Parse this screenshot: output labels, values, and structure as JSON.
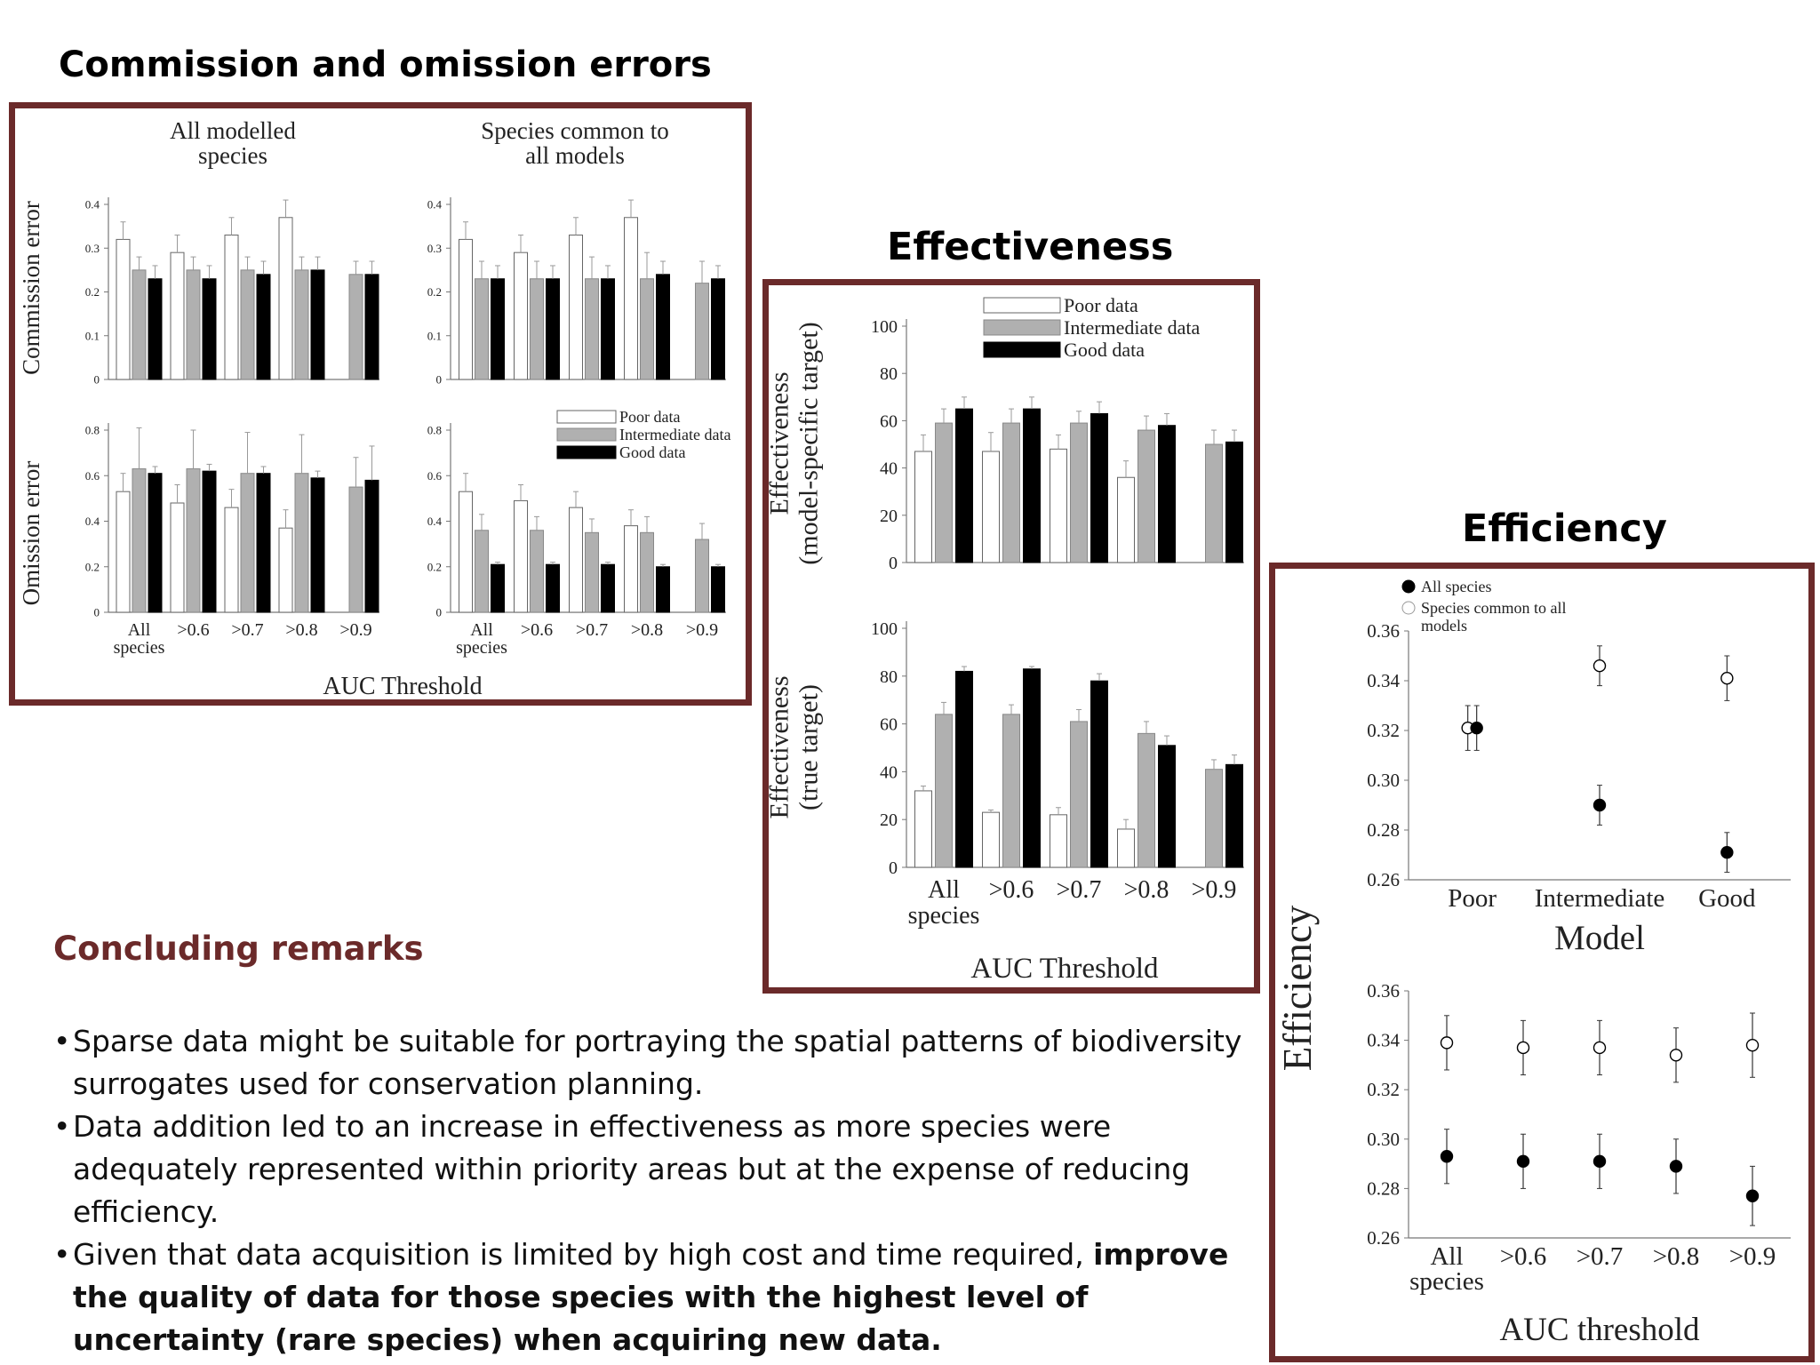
{
  "headings": {
    "commission_omission": "Commission and omission errors",
    "effectiveness": "Effectiveness",
    "efficiency": "Efficiency",
    "concluding": "Concluding remarks"
  },
  "colors": {
    "frame": "#6b2a2a",
    "poor": "#ffffff",
    "intermediate": "#b0b0b0",
    "good": "#000000",
    "remarks": "#6b2a2a"
  },
  "remarks": [
    {
      "text": "Sparse data might be suitable for portraying the spatial patterns of biodiversity surrogates used for conservation planning.",
      "bold": ""
    },
    {
      "text": "Data addition led to an increase in effectiveness as more species were adequately represented within priority areas but at the expense of reducing efficiency.",
      "bold": ""
    },
    {
      "text": "Given that data acquisition is limited by high cost and time required, ",
      "bold": "improve the quality of data for those species with the highest level of uncertainty (rare species) when acquiring new data."
    }
  ],
  "chart_data": [
    {
      "id": "errors",
      "type": "bar",
      "col_titles": [
        [
          "All modelled",
          "species"
        ],
        [
          "Species common to",
          "all models"
        ]
      ],
      "row_labels": [
        "Commission error",
        "Omission error"
      ],
      "categories": [
        [
          "All",
          "species"
        ],
        [
          ">0.6"
        ],
        [
          ">0.7"
        ],
        [
          ">0.8"
        ],
        [
          ">0.9"
        ]
      ],
      "xlabel": "AUC Threshold",
      "legend": [
        "Poor data",
        "Intermediate data",
        "Good data"
      ],
      "subplots": [
        {
          "ylim": [
            0,
            0.4
          ],
          "ticks": [
            "0",
            "0.1",
            "0.2",
            "0.3",
            "0.4"
          ],
          "tickvals": [
            0,
            0.1,
            0.2,
            0.3,
            0.4
          ],
          "series": [
            {
              "name": "Poor data",
              "values": [
                0.32,
                0.29,
                0.33,
                0.37,
                null
              ],
              "err": [
                0.04,
                0.04,
                0.04,
                0.04,
                null
              ]
            },
            {
              "name": "Intermediate data",
              "values": [
                0.25,
                0.25,
                0.25,
                0.25,
                0.24
              ],
              "err": [
                0.03,
                0.03,
                0.03,
                0.03,
                0.03
              ]
            },
            {
              "name": "Good data",
              "values": [
                0.23,
                0.23,
                0.24,
                0.25,
                0.24
              ],
              "err": [
                0.03,
                0.03,
                0.03,
                0.03,
                0.03
              ]
            }
          ]
        },
        {
          "ylim": [
            0,
            0.4
          ],
          "ticks": [
            "0",
            "0.1",
            "0.2",
            "0.3",
            "0.4"
          ],
          "tickvals": [
            0,
            0.1,
            0.2,
            0.3,
            0.4
          ],
          "series": [
            {
              "name": "Poor data",
              "values": [
                0.32,
                0.29,
                0.33,
                0.37,
                null
              ],
              "err": [
                0.04,
                0.04,
                0.04,
                0.04,
                null
              ]
            },
            {
              "name": "Intermediate data",
              "values": [
                0.23,
                0.23,
                0.23,
                0.23,
                0.22
              ],
              "err": [
                0.04,
                0.04,
                0.05,
                0.06,
                0.05
              ]
            },
            {
              "name": "Good data",
              "values": [
                0.23,
                0.23,
                0.23,
                0.24,
                0.23
              ],
              "err": [
                0.03,
                0.03,
                0.03,
                0.03,
                0.03
              ]
            }
          ]
        },
        {
          "ylim": [
            0,
            0.8
          ],
          "ticks": [
            "0",
            "0.2",
            "0.4",
            "0.6",
            "0.8"
          ],
          "tickvals": [
            0,
            0.2,
            0.4,
            0.6,
            0.8
          ],
          "series": [
            {
              "name": "Poor data",
              "values": [
                0.53,
                0.48,
                0.46,
                0.37,
                null
              ],
              "err": [
                0.08,
                0.08,
                0.08,
                0.08,
                null
              ]
            },
            {
              "name": "Intermediate data",
              "values": [
                0.63,
                0.63,
                0.61,
                0.61,
                0.55
              ],
              "err": [
                0.18,
                0.17,
                0.18,
                0.17,
                0.13
              ]
            },
            {
              "name": "Good data",
              "values": [
                0.61,
                0.62,
                0.61,
                0.59,
                0.58
              ],
              "err": [
                0.03,
                0.03,
                0.03,
                0.03,
                0.15
              ]
            }
          ]
        },
        {
          "ylim": [
            0,
            0.8
          ],
          "ticks": [
            "0",
            "0.2",
            "0.4",
            "0.6",
            "0.8"
          ],
          "tickvals": [
            0,
            0.2,
            0.4,
            0.6,
            0.8
          ],
          "series": [
            {
              "name": "Poor data",
              "values": [
                0.53,
                0.49,
                0.46,
                0.38,
                null
              ],
              "err": [
                0.08,
                0.07,
                0.07,
                0.07,
                null
              ]
            },
            {
              "name": "Intermediate data",
              "values": [
                0.36,
                0.36,
                0.35,
                0.35,
                0.32
              ],
              "err": [
                0.07,
                0.06,
                0.06,
                0.07,
                0.07
              ]
            },
            {
              "name": "Good data",
              "values": [
                0.21,
                0.21,
                0.21,
                0.2,
                0.2
              ],
              "err": [
                0.01,
                0.01,
                0.01,
                0.01,
                0.01
              ]
            }
          ]
        }
      ]
    },
    {
      "id": "effectiveness",
      "type": "bar",
      "ylabels": [
        [
          "Effectiveness",
          "(model-specific target)"
        ],
        [
          "Effectiveness",
          "(true target)"
        ]
      ],
      "categories": [
        [
          "All",
          "species"
        ],
        [
          ">0.6"
        ],
        [
          ">0.7"
        ],
        [
          ">0.8"
        ],
        [
          ">0.9"
        ]
      ],
      "xlabel": "AUC Threshold",
      "legend": [
        "Poor data",
        "Intermediate data",
        "Good data"
      ],
      "ylim": [
        0,
        100
      ],
      "ticks": [
        "0",
        "20",
        "40",
        "60",
        "80",
        "100"
      ],
      "tickvals": [
        0,
        20,
        40,
        60,
        80,
        100
      ],
      "subplots": [
        {
          "series": [
            {
              "name": "Poor data",
              "values": [
                47,
                47,
                48,
                36,
                null
              ],
              "err": [
                7,
                8,
                6,
                7,
                null
              ]
            },
            {
              "name": "Intermediate data",
              "values": [
                59,
                59,
                59,
                56,
                50
              ],
              "err": [
                6,
                6,
                5,
                6,
                6
              ]
            },
            {
              "name": "Good data",
              "values": [
                65,
                65,
                63,
                58,
                51
              ],
              "err": [
                5,
                5,
                5,
                5,
                5
              ]
            }
          ]
        },
        {
          "series": [
            {
              "name": "Poor data",
              "values": [
                32,
                23,
                22,
                16,
                null
              ],
              "err": [
                2,
                1,
                3,
                4,
                null
              ]
            },
            {
              "name": "Intermediate data",
              "values": [
                64,
                64,
                61,
                56,
                41
              ],
              "err": [
                5,
                4,
                5,
                5,
                4
              ]
            },
            {
              "name": "Good data",
              "values": [
                82,
                83,
                78,
                51,
                43
              ],
              "err": [
                2,
                1,
                3,
                4,
                4
              ]
            }
          ]
        }
      ]
    },
    {
      "id": "efficiency",
      "type": "scatter",
      "ylabel": "Efficiency",
      "legend": [
        "All species",
        [
          "Species common to all",
          "models"
        ]
      ],
      "ylim": [
        0.26,
        0.36
      ],
      "ticks": [
        "0.26",
        "0.28",
        "0.30",
        "0.32",
        "0.34",
        "0.36"
      ],
      "tickvals": [
        0.26,
        0.28,
        0.3,
        0.32,
        0.34,
        0.36
      ],
      "subplots": [
        {
          "xlabel": "Model",
          "categories": [
            [
              "Poor"
            ],
            [
              "Intermediate"
            ],
            [
              "Good"
            ]
          ],
          "series": [
            {
              "name": "Species common to all models",
              "filled": false,
              "values": [
                0.321,
                0.346,
                0.341
              ],
              "err": [
                0.009,
                0.008,
                0.009
              ]
            },
            {
              "name": "All species",
              "filled": true,
              "values": [
                0.321,
                0.29,
                0.271
              ],
              "err": [
                0.009,
                0.008,
                0.008
              ]
            }
          ]
        },
        {
          "xlabel": "AUC threshold",
          "categories": [
            [
              "All",
              "species"
            ],
            [
              ">0.6"
            ],
            [
              ">0.7"
            ],
            [
              ">0.8"
            ],
            [
              ">0.9"
            ]
          ],
          "series": [
            {
              "name": "Species common to all models",
              "filled": false,
              "values": [
                0.339,
                0.337,
                0.337,
                0.334,
                0.338
              ],
              "err": [
                0.011,
                0.011,
                0.011,
                0.011,
                0.013
              ]
            },
            {
              "name": "All species",
              "filled": true,
              "values": [
                0.293,
                0.291,
                0.291,
                0.289,
                0.277
              ],
              "err": [
                0.011,
                0.011,
                0.011,
                0.011,
                0.012
              ]
            }
          ]
        }
      ]
    }
  ]
}
